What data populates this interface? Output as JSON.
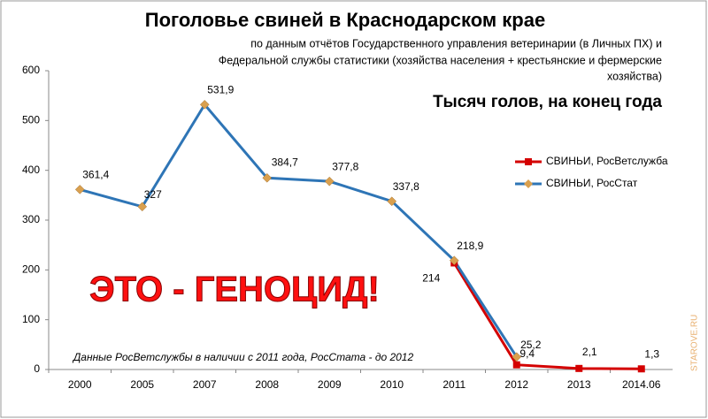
{
  "chart_data": {
    "type": "line",
    "title": "Поголовье свиней в Краснодарском крае",
    "subtitle_lines": [
      "по данным отчётов Государственного управления ветеринарии (в Личных ПХ) и",
      "Федеральной службы статистики (хозяйства населения + крестьянские и фермерские",
      "хозяйства)"
    ],
    "units": "Тысяч голов, на конец года",
    "annotation": "ЭТО - ГЕНОЦИД!",
    "note": "Данные РосВетслужбы в наличии с 2011 года, РосСтата - до 2012",
    "watermark": "STAROVE.RU",
    "categories": [
      "2000",
      "2005",
      "2007",
      "2008",
      "2009",
      "2010",
      "2011",
      "2012",
      "2013",
      "2014.06"
    ],
    "series": [
      {
        "name": "СВИНЬИ, РосВетслужба",
        "color": "#d40000",
        "marker_color": "#d40000",
        "values": [
          null,
          null,
          null,
          null,
          null,
          null,
          214,
          9.4,
          2.1,
          1.3
        ],
        "value_labels": [
          null,
          null,
          null,
          null,
          null,
          null,
          "214",
          "9,4",
          "2,1",
          "1,3"
        ]
      },
      {
        "name": "СВИНЬИ, РосСтат",
        "color": "#2e75b6",
        "marker_color": "#d9a04f",
        "values": [
          361.4,
          327,
          531.9,
          384.7,
          377.8,
          337.8,
          218.9,
          25.2,
          null,
          null
        ],
        "value_labels": [
          "361,4",
          "327",
          "531,9",
          "384,7",
          "377,8",
          "337,8",
          "218,9",
          "25,2",
          null,
          null
        ]
      }
    ],
    "ylim": [
      0,
      600
    ],
    "yticks": [
      0,
      100,
      200,
      300,
      400,
      500,
      600
    ],
    "grid": false
  }
}
